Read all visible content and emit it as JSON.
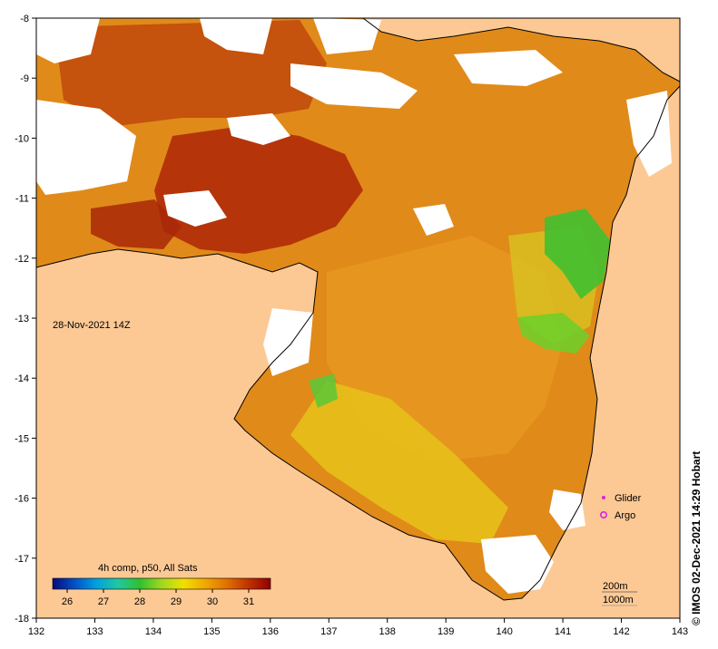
{
  "map": {
    "date_label": "28-Nov-2021 14Z",
    "credit": "© IMOS 02-Dec-2021 14:29 Hobart",
    "lon_ticks": [
      "132",
      "133",
      "134",
      "135",
      "136",
      "137",
      "138",
      "139",
      "140",
      "141",
      "142",
      "143"
    ],
    "lat_ticks": [
      "-8",
      "-9",
      "-10",
      "-11",
      "-12",
      "-13",
      "-14",
      "-15",
      "-16",
      "-17",
      "-18"
    ],
    "legend": {
      "title": "4h comp, p50, All Sats",
      "ticks": [
        "26",
        "27",
        "28",
        "29",
        "30",
        "31"
      ],
      "range": [
        25.6,
        31.6
      ],
      "colors": [
        "#0a0a7a",
        "#0050c8",
        "#00a0e0",
        "#20c8a0",
        "#30c030",
        "#a0d820",
        "#f0e000",
        "#f0a800",
        "#e07000",
        "#c03000",
        "#900000"
      ]
    },
    "markers": {
      "glider": "Glider",
      "argo": "Argo",
      "marker_color": "#e020e0"
    },
    "depth_contours": [
      "200m",
      "1000m"
    ],
    "colors": {
      "land": "#fcc995",
      "sea_warm": "#e08a1a",
      "sea_hot": "#b02a08",
      "sea_cool": "#e6c21a",
      "cloud": "#ffffff"
    }
  }
}
